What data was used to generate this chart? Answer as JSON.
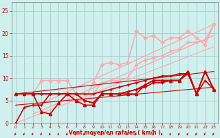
{
  "background_color": "#cff0ee",
  "grid_color": "#aacccc",
  "xlabel": "Vent moyen/en rafales ( km/h )",
  "xlabel_color": "#dd0000",
  "tick_color": "#cc0000",
  "ylim": [
    0,
    27
  ],
  "xlim": [
    -0.5,
    23.5
  ],
  "yticks": [
    0,
    5,
    10,
    15,
    20,
    25
  ],
  "xticks": [
    0,
    1,
    2,
    3,
    4,
    5,
    6,
    7,
    8,
    9,
    10,
    11,
    12,
    13,
    14,
    15,
    16,
    17,
    18,
    19,
    20,
    21,
    22,
    23
  ],
  "series": [
    {
      "x": [
        2,
        3,
        4,
        5,
        6,
        7,
        8,
        9,
        10,
        11,
        12,
        13,
        14,
        15,
        16,
        17,
        18,
        19,
        20,
        21,
        22,
        23
      ],
      "y": [
        6.5,
        9.5,
        9.5,
        9.5,
        9.5,
        6.5,
        5.0,
        9.0,
        13.0,
        13.5,
        13.0,
        13.5,
        20.5,
        19.0,
        19.5,
        18.0,
        19.0,
        19.0,
        20.5,
        19.0,
        17.5,
        22.0
      ],
      "color": "#ffaaaa",
      "lw": 1.2,
      "marker": "D",
      "ms": 2.5,
      "zorder": 3
    },
    {
      "x": [
        2,
        3,
        4,
        5,
        6,
        7,
        8,
        9,
        10,
        11,
        12,
        13,
        14,
        15,
        16,
        17,
        18,
        19,
        20,
        21,
        22,
        23
      ],
      "y": [
        6.5,
        6.5,
        6.5,
        6.5,
        6.5,
        5.0,
        5.0,
        6.5,
        9.0,
        9.5,
        9.5,
        10.0,
        13.0,
        14.0,
        14.5,
        15.0,
        16.0,
        16.5,
        18.0,
        18.0,
        18.5,
        22.0
      ],
      "color": "#ffaaaa",
      "lw": 1.2,
      "marker": "D",
      "ms": 2.0,
      "zorder": 3
    },
    {
      "x": [
        2,
        23
      ],
      "y": [
        3.5,
        22.0
      ],
      "color": "#ffaaaa",
      "lw": 1.0,
      "marker": null,
      "ms": 0,
      "zorder": 2
    },
    {
      "x": [
        2,
        23
      ],
      "y": [
        2.0,
        19.5
      ],
      "color": "#ffaaaa",
      "lw": 1.0,
      "marker": null,
      "ms": 0,
      "zorder": 2
    },
    {
      "x": [
        0,
        23
      ],
      "y": [
        0.0,
        17.0
      ],
      "color": "#ffaaaa",
      "lw": 0.8,
      "marker": null,
      "ms": 0,
      "zorder": 2
    },
    {
      "x": [
        0,
        1,
        2,
        3,
        4,
        5,
        6,
        7,
        8,
        9,
        10,
        11,
        12,
        13,
        14,
        15,
        16,
        17,
        18,
        19,
        20,
        21,
        22,
        23
      ],
      "y": [
        6.5,
        6.5,
        6.5,
        6.5,
        6.5,
        6.5,
        6.5,
        6.5,
        6.5,
        6.5,
        7.0,
        7.5,
        8.0,
        8.5,
        9.0,
        9.5,
        10.0,
        10.5,
        10.5,
        11.0,
        11.0,
        6.5,
        9.5,
        7.5
      ],
      "color": "#cc0000",
      "lw": 1.2,
      "marker": "+",
      "ms": 3.0,
      "zorder": 4
    },
    {
      "x": [
        0,
        1,
        2,
        3,
        4,
        5,
        6,
        7,
        8,
        9,
        10,
        11,
        12,
        13,
        14,
        15,
        16,
        17,
        18,
        19,
        20,
        21,
        22,
        23
      ],
      "y": [
        6.5,
        6.5,
        6.5,
        6.5,
        6.5,
        6.5,
        6.5,
        6.5,
        5.0,
        4.5,
        6.5,
        6.5,
        6.5,
        7.0,
        7.5,
        8.5,
        9.5,
        9.5,
        9.5,
        9.5,
        11.5,
        6.5,
        11.5,
        7.5
      ],
      "color": "#cc0000",
      "lw": 1.2,
      "marker": "+",
      "ms": 3.0,
      "zorder": 4
    },
    {
      "x": [
        0,
        1,
        2,
        3,
        4,
        5,
        6,
        7,
        8,
        9,
        10,
        11,
        12,
        13,
        14,
        15,
        16,
        17,
        18,
        19,
        20,
        21,
        22,
        23
      ],
      "y": [
        6.5,
        6.5,
        6.5,
        2.5,
        2.0,
        4.5,
        6.5,
        5.0,
        4.0,
        4.0,
        6.5,
        6.5,
        6.5,
        6.5,
        6.5,
        8.5,
        9.5,
        9.5,
        9.5,
        9.5,
        11.5,
        6.5,
        11.5,
        7.5
      ],
      "color": "#cc0000",
      "lw": 1.2,
      "marker": "^",
      "ms": 3.0,
      "zorder": 4
    },
    {
      "x": [
        0,
        1,
        2,
        3,
        4,
        5,
        6,
        7,
        8,
        9,
        10,
        11,
        12,
        13,
        14,
        15,
        16,
        17,
        18,
        19,
        20,
        21,
        22,
        23
      ],
      "y": [
        0.0,
        3.5,
        4.0,
        4.0,
        6.5,
        6.5,
        6.5,
        6.5,
        5.0,
        4.5,
        6.5,
        6.5,
        6.5,
        7.0,
        7.5,
        8.0,
        9.0,
        9.0,
        9.5,
        9.5,
        11.0,
        6.5,
        11.5,
        7.5
      ],
      "color": "#cc0000",
      "lw": 1.2,
      "marker": "+",
      "ms": 3.0,
      "zorder": 4
    },
    {
      "x": [
        0,
        23
      ],
      "y": [
        6.5,
        11.5
      ],
      "color": "#cc0000",
      "lw": 0.8,
      "marker": null,
      "ms": 0,
      "zorder": 3
    },
    {
      "x": [
        0,
        23
      ],
      "y": [
        4.0,
        8.0
      ],
      "color": "#cc0000",
      "lw": 0.8,
      "marker": null,
      "ms": 0,
      "zorder": 3
    }
  ]
}
